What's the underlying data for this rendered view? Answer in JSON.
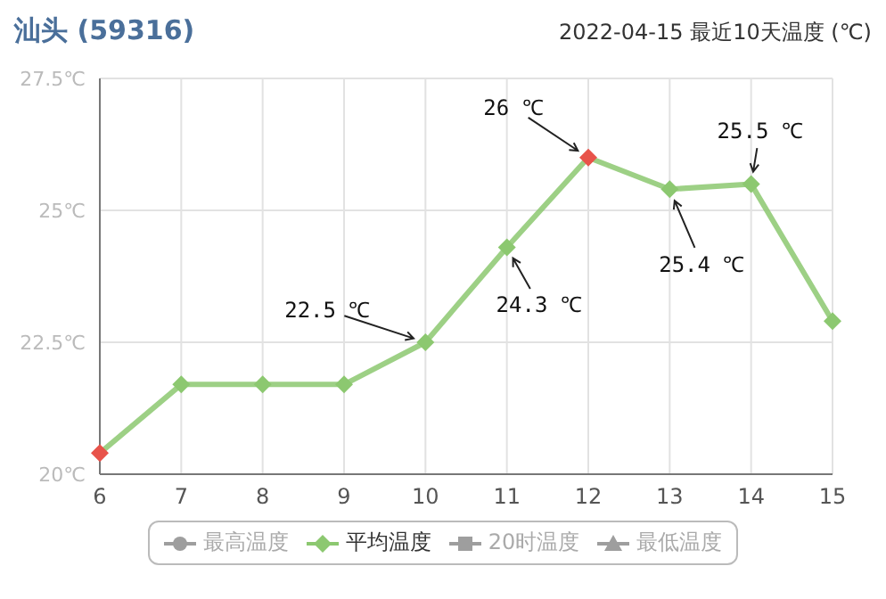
{
  "chart_data": {
    "type": "line",
    "title": "汕头 (59316)",
    "subtitle": "2022-04-15 最近10天温度 (℃)",
    "categories": [
      "6",
      "7",
      "8",
      "9",
      "10",
      "11",
      "12",
      "13",
      "14",
      "15"
    ],
    "series": [
      {
        "name": "最高温度",
        "color": "#9e9e9e",
        "values": [
          null,
          null,
          null,
          null,
          null,
          null,
          null,
          null,
          null,
          null
        ]
      },
      {
        "name": "平均温度",
        "color": "#8cc870",
        "colors": [
          "#e8534a",
          "#8cc870",
          "#8cc870",
          "#8cc870",
          "#8cc870",
          "#8cc870",
          "#e8534a",
          "#8cc870",
          "#8cc870",
          "#8cc870"
        ],
        "values": [
          20.4,
          21.7,
          21.7,
          21.7,
          22.5,
          24.3,
          26,
          25.4,
          25.5,
          22.9
        ]
      },
      {
        "name": "20时温度",
        "color": "#9e9e9e",
        "values": [
          null,
          null,
          null,
          null,
          null,
          null,
          null,
          null,
          null,
          null
        ]
      },
      {
        "name": "最低温度",
        "color": "#9e9e9e",
        "values": [
          null,
          null,
          null,
          null,
          null,
          null,
          null,
          null,
          null,
          null
        ]
      }
    ],
    "ylim": [
      20,
      27.5
    ],
    "yticks": [
      {
        "value": 20,
        "label": "20℃"
      },
      {
        "value": 22.5,
        "label": "22.5℃"
      },
      {
        "value": 25,
        "label": "25℃"
      },
      {
        "value": 27.5,
        "label": "27.5℃"
      }
    ],
    "grid": true,
    "legend": "bottom",
    "marker": "diamond",
    "line_style": "solid",
    "annotations": [
      {
        "text": "22.5 ℃",
        "x": "10",
        "y": 22.5
      },
      {
        "text": "24.3 ℃",
        "x": "11",
        "y": 24.3
      },
      {
        "text": "26 ℃",
        "x": "12",
        "y": 26
      },
      {
        "text": "25.4 ℃",
        "x": "13",
        "y": 25.4
      },
      {
        "text": "25.5 ℃",
        "x": "14",
        "y": 25.5
      }
    ]
  }
}
